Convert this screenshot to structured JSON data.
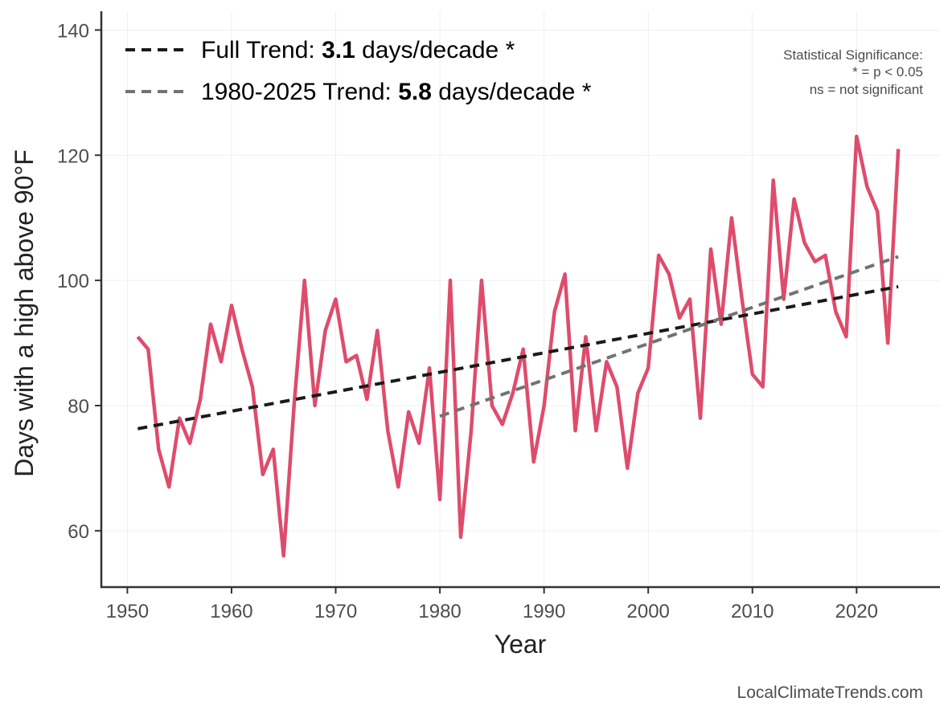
{
  "chart_data": {
    "type": "line",
    "xlabel": "Year",
    "ylabel": "Days with a high above 90°F",
    "xlim": [
      1947.5,
      2028
    ],
    "ylim": [
      51,
      143
    ],
    "xticks": [
      1950,
      1960,
      1970,
      1980,
      1990,
      2000,
      2010,
      2020
    ],
    "yticks": [
      60,
      80,
      100,
      120,
      140
    ],
    "grid": true,
    "colors": {
      "series": "#de4c6c",
      "full_trend": "#1a1a1a",
      "recent_trend": "#737373"
    },
    "series": [
      {
        "name": "Days with a high above 90°F",
        "x": [
          1951,
          1952,
          1953,
          1954,
          1955,
          1956,
          1957,
          1958,
          1959,
          1960,
          1961,
          1962,
          1963,
          1964,
          1965,
          1966,
          1967,
          1968,
          1969,
          1970,
          1971,
          1972,
          1973,
          1974,
          1975,
          1976,
          1977,
          1978,
          1979,
          1980,
          1981,
          1982,
          1983,
          1984,
          1985,
          1986,
          1987,
          1988,
          1989,
          1990,
          1991,
          1992,
          1993,
          1994,
          1995,
          1996,
          1997,
          1998,
          1999,
          2000,
          2001,
          2002,
          2003,
          2004,
          2005,
          2006,
          2007,
          2008,
          2009,
          2010,
          2011,
          2012,
          2013,
          2014,
          2015,
          2016,
          2017,
          2018,
          2019,
          2020,
          2021,
          2022,
          2023,
          2024
        ],
        "values": [
          91,
          89,
          73,
          67,
          78,
          74,
          81,
          93,
          87,
          96,
          89,
          83,
          69,
          73,
          56,
          80,
          100,
          80,
          92,
          97,
          87,
          88,
          81,
          92,
          76,
          67,
          79,
          74,
          86,
          65,
          100,
          59,
          76,
          100,
          80,
          77,
          82,
          89,
          71,
          80,
          95,
          101,
          76,
          91,
          76,
          87,
          83,
          70,
          82,
          86,
          104,
          101,
          94,
          97,
          78,
          105,
          93,
          110,
          97,
          85,
          83,
          116,
          97,
          113,
          106,
          103,
          104,
          95,
          91,
          123,
          115,
          111,
          90,
          121
        ]
      }
    ],
    "trends": [
      {
        "name": "Full Trend",
        "prefix": "Full Trend: ",
        "value": "3.1",
        "suffix": " days/decade *",
        "x": [
          1951,
          2024
        ],
        "y": [
          76.3,
          99.0
        ]
      },
      {
        "name": "1980-2025 Trend",
        "prefix": "1980-2025 Trend: ",
        "value": "5.8",
        "suffix": " days/decade *",
        "x": [
          1980,
          2024
        ],
        "y": [
          78.3,
          103.8
        ]
      }
    ],
    "legend_position": "top-left",
    "significance_note": [
      "Statistical Significance:",
      "* = p < 0.05",
      "ns = not significant"
    ],
    "credit": "LocalClimateTrends.com"
  }
}
